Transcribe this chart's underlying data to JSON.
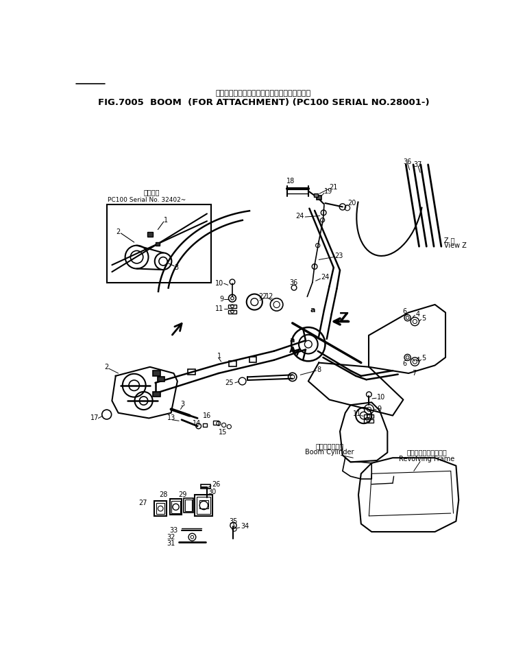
{
  "title_line1": "ブーム　アタッチメント用　　　　　通用号機",
  "title_line2": "FIG.7005  BOOM  (FOR ATTACHMENT) (PC100 SERIAL NO.28001-)",
  "bg_color": "#ffffff",
  "line_color": "#000000",
  "inset_label1": "通用号機",
  "inset_label2": "PC100 Serial No. 32402~",
  "boom_cylinder_label1": "ブームシリンダ",
  "boom_cylinder_label2": "Boom Cylinder",
  "revolving_frame_label1": "レボルビングフレーム",
  "revolving_frame_label2": "Revolving Frame",
  "view_z_label1": "Z 視",
  "view_z_label2": "View Z"
}
